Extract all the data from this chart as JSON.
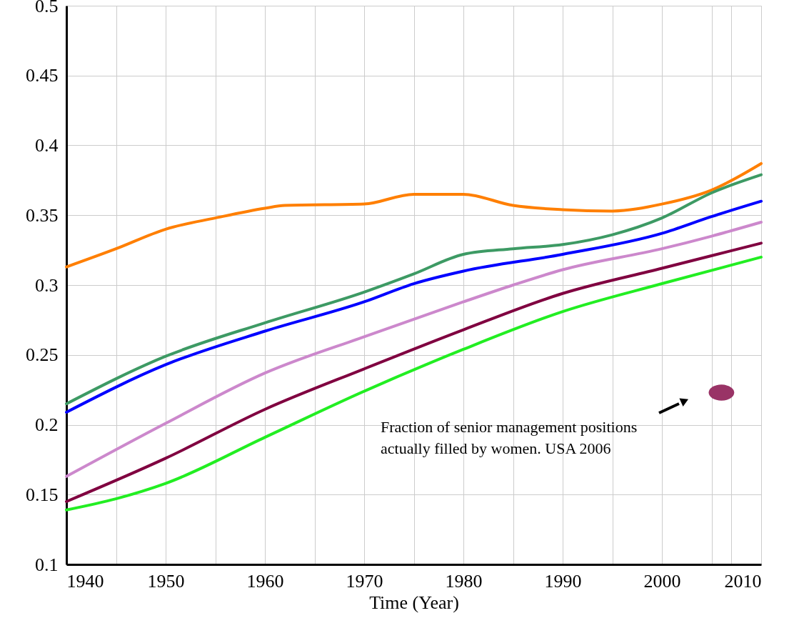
{
  "chart_data": {
    "type": "line",
    "xlabel": "Time (Year)",
    "xlim": [
      1940,
      2010
    ],
    "xticks": [
      1940,
      {
        "value": 1945,
        "label": null
      },
      1950,
      {
        "value": 1955,
        "label": null
      },
      1960,
      {
        "value": 1965,
        "label": null
      },
      1970,
      {
        "value": 1975,
        "label": null
      },
      1980,
      {
        "value": 1985,
        "label": null
      },
      1990,
      {
        "value": 1995,
        "label": null
      },
      2000,
      {
        "value": 2005,
        "label": null
      },
      {
        "value": 2007,
        "label": null
      },
      2010
    ],
    "ylim": [
      0.1,
      0.5
    ],
    "yticks": [
      0.1,
      0.15,
      0.2,
      0.25,
      0.3,
      0.35,
      0.4,
      0.45,
      0.5
    ],
    "grid": true,
    "line_style": "solid",
    "marker": "none",
    "annotations": [
      "Fraction of senior management positions\nactually filled by women. USA 2006"
    ],
    "series": [
      {
        "color": "#ff7f00",
        "x": [
          1940,
          1945,
          1950,
          1955,
          1960,
          1962,
          1970,
          1975,
          1980,
          1985,
          1990,
          1995,
          2000,
          2005,
          2010
        ],
        "values": [
          0.313,
          0.326,
          0.34,
          0.348,
          0.355,
          0.357,
          0.358,
          0.365,
          0.365,
          0.357,
          0.354,
          0.353,
          0.358,
          0.368,
          0.387
        ]
      },
      {
        "color": "#3d9a64",
        "x": [
          1940,
          1950,
          1960,
          1970,
          1975,
          1980,
          1985,
          1990,
          1995,
          2000,
          2005,
          2010
        ],
        "values": [
          0.215,
          0.249,
          0.273,
          0.295,
          0.308,
          0.322,
          0.326,
          0.329,
          0.336,
          0.348,
          0.366,
          0.379
        ]
      },
      {
        "color": "#0000ff",
        "x": [
          1940,
          1950,
          1960,
          1970,
          1975,
          1980,
          1990,
          2000,
          2005,
          2010
        ],
        "values": [
          0.209,
          0.243,
          0.267,
          0.288,
          0.301,
          0.31,
          0.322,
          0.337,
          0.349,
          0.36
        ]
      },
      {
        "color": "#cc88cc",
        "x": [
          1940,
          1950,
          1960,
          1970,
          1980,
          1985,
          1990,
          2000,
          2005,
          2010
        ],
        "values": [
          0.163,
          0.201,
          0.237,
          0.263,
          0.288,
          0.3,
          0.311,
          0.326,
          0.335,
          0.345
        ]
      },
      {
        "color": "#800040",
        "x": [
          1940,
          1950,
          1960,
          1970,
          1980,
          1990,
          2000,
          2010
        ],
        "values": [
          0.145,
          0.176,
          0.211,
          0.24,
          0.268,
          0.294,
          0.312,
          0.33
        ]
      },
      {
        "color": "#22ee22",
        "x": [
          1940,
          1945,
          1950,
          1960,
          1970,
          1980,
          1990,
          2000,
          2010
        ],
        "values": [
          0.139,
          0.147,
          0.158,
          0.191,
          0.224,
          0.254,
          0.281,
          0.301,
          0.32
        ]
      },
      {
        "type": "scatter",
        "marker": "circle",
        "color": "#993366",
        "x": [
          2006
        ],
        "values": [
          0.223
        ]
      }
    ]
  }
}
